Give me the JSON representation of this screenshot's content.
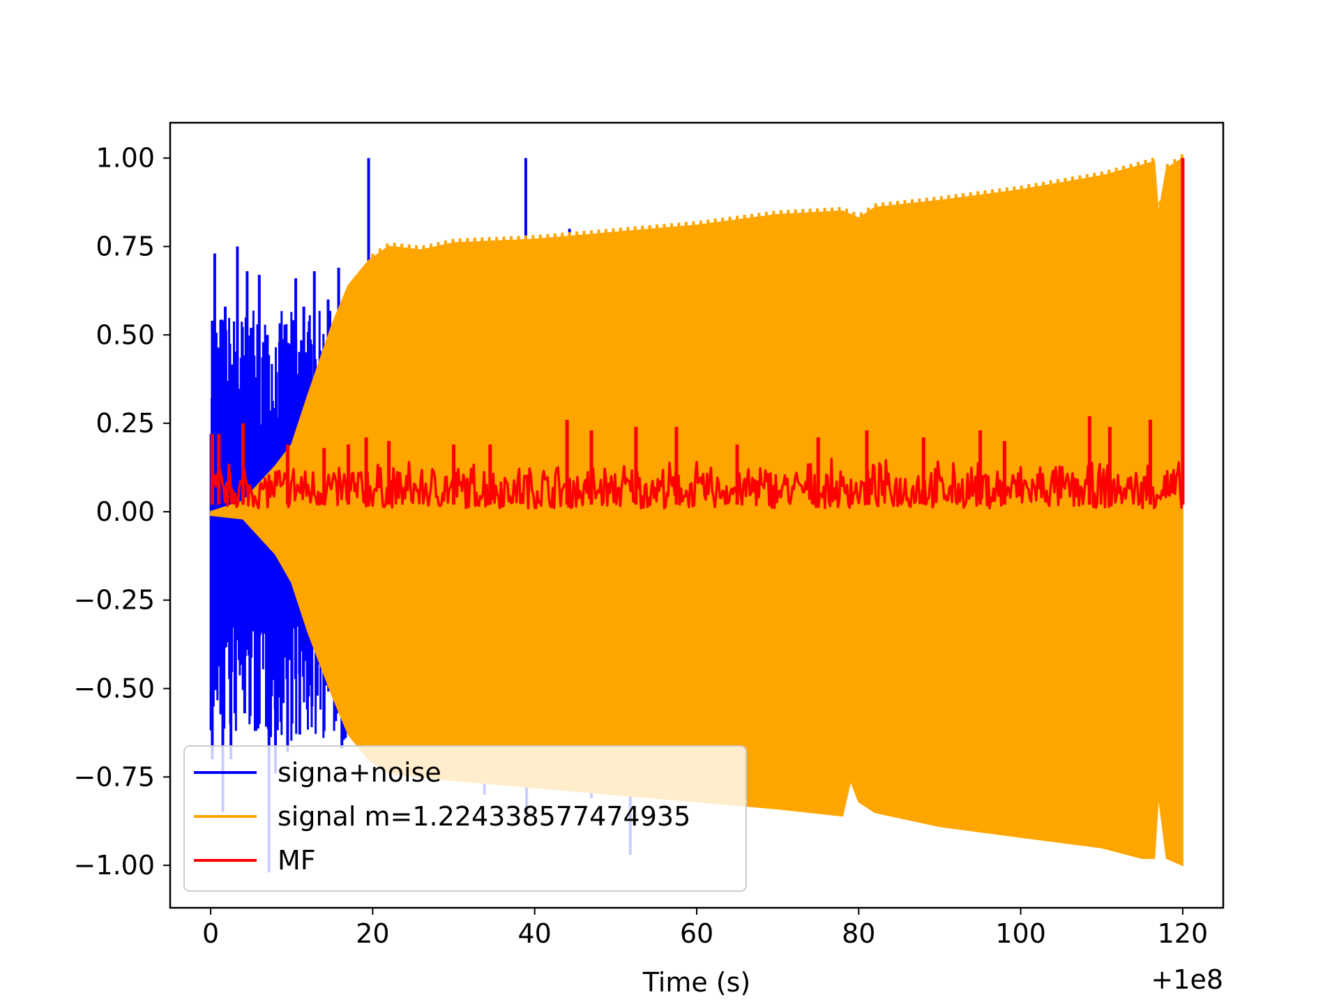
{
  "chart_data": {
    "type": "line",
    "title": "",
    "xlabel": "Time (s)",
    "ylabel": "",
    "x_offset_label": "+1e8",
    "xlim": [
      -5,
      125
    ],
    "ylim": [
      -1.12,
      1.1
    ],
    "x_ticks": [
      0,
      20,
      40,
      60,
      80,
      100,
      120
    ],
    "x_tick_labels": [
      "0",
      "20",
      "40",
      "60",
      "80",
      "100",
      "120"
    ],
    "y_ticks": [
      1.0,
      0.75,
      0.5,
      0.25,
      0.0,
      -0.25,
      -0.5,
      -0.75,
      -1.0
    ],
    "y_tick_labels": [
      "1.00",
      "0.75",
      "0.50",
      "0.25",
      "0.00",
      "−0.25",
      "−0.50",
      "−0.75",
      "−1.00"
    ],
    "grid": false,
    "legend_position": "bottom-left",
    "colors": {
      "signal_noise": "#0000ff",
      "signal": "#ffa500",
      "mf": "#ff0000"
    },
    "series": [
      {
        "name": "signa+noise",
        "color": "#0000ff",
        "spikes": [
          {
            "x": 0.2,
            "y": 0.54
          },
          {
            "x": 0.5,
            "y": 0.73
          },
          {
            "x": 1.0,
            "y": 0.4
          },
          {
            "x": 1.8,
            "y": 0.58
          },
          {
            "x": 2.3,
            "y": 0.36
          },
          {
            "x": 3.3,
            "y": 0.75
          },
          {
            "x": 4.5,
            "y": 0.68
          },
          {
            "x": 5.0,
            "y": 0.52
          },
          {
            "x": 6.0,
            "y": 0.67
          },
          {
            "x": 7.0,
            "y": 0.5
          },
          {
            "x": 8.5,
            "y": 0.48
          },
          {
            "x": 10.5,
            "y": 0.66
          },
          {
            "x": 11.5,
            "y": 0.58
          },
          {
            "x": 12.8,
            "y": 0.68
          },
          {
            "x": 14.5,
            "y": 0.6
          },
          {
            "x": 15.8,
            "y": 0.69
          },
          {
            "x": 19.5,
            "y": 1.0
          },
          {
            "x": 38.9,
            "y": 1.0
          },
          {
            "x": 44.3,
            "y": 0.8
          },
          {
            "x": 49.0,
            "y": 0.79
          },
          {
            "x": 0.2,
            "y": -0.7
          },
          {
            "x": 1.5,
            "y": -0.85
          },
          {
            "x": 2.5,
            "y": -0.7
          },
          {
            "x": 3.0,
            "y": -0.57
          },
          {
            "x": 4.2,
            "y": -0.57
          },
          {
            "x": 5.5,
            "y": -0.62
          },
          {
            "x": 6.0,
            "y": -0.6
          },
          {
            "x": 7.2,
            "y": -1.02
          },
          {
            "x": 8.0,
            "y": -0.74
          },
          {
            "x": 9.5,
            "y": -0.68
          },
          {
            "x": 11.0,
            "y": -0.63
          },
          {
            "x": 12.5,
            "y": -0.55
          },
          {
            "x": 14.0,
            "y": -0.57
          },
          {
            "x": 16.2,
            "y": -0.67
          },
          {
            "x": 33.8,
            "y": -0.8
          },
          {
            "x": 39.0,
            "y": -0.86
          },
          {
            "x": 43.0,
            "y": -0.78
          },
          {
            "x": 47.0,
            "y": -0.81
          },
          {
            "x": 51.8,
            "y": -0.97
          }
        ]
      },
      {
        "name": "signal m=1.224338577474935",
        "color": "#ffa500",
        "envelope_upper": [
          [
            0,
            0.0
          ],
          [
            4,
            0.03
          ],
          [
            8,
            0.13
          ],
          [
            10,
            0.19
          ],
          [
            12,
            0.33
          ],
          [
            15,
            0.53
          ],
          [
            17,
            0.64
          ],
          [
            19.5,
            0.71
          ],
          [
            22,
            0.75
          ],
          [
            26,
            0.74
          ],
          [
            30,
            0.76
          ],
          [
            40,
            0.77
          ],
          [
            50,
            0.79
          ],
          [
            60,
            0.81
          ],
          [
            70,
            0.84
          ],
          [
            78,
            0.85
          ],
          [
            80,
            0.83
          ],
          [
            82,
            0.86
          ],
          [
            90,
            0.88
          ],
          [
            100,
            0.91
          ],
          [
            110,
            0.95
          ],
          [
            115,
            0.98
          ],
          [
            116.5,
            0.99
          ],
          [
            117,
            0.84
          ],
          [
            118,
            0.97
          ],
          [
            120,
            1.0
          ]
        ],
        "envelope_lower": [
          [
            0,
            -0.01
          ],
          [
            4,
            -0.02
          ],
          [
            8,
            -0.12
          ],
          [
            10,
            -0.2
          ],
          [
            12,
            -0.34
          ],
          [
            15,
            -0.52
          ],
          [
            17,
            -0.63
          ],
          [
            19.5,
            -0.7
          ],
          [
            22,
            -0.74
          ],
          [
            26,
            -0.75
          ],
          [
            30,
            -0.76
          ],
          [
            40,
            -0.78
          ],
          [
            50,
            -0.8
          ],
          [
            60,
            -0.82
          ],
          [
            70,
            -0.84
          ],
          [
            78,
            -0.86
          ],
          [
            79,
            -0.76
          ],
          [
            80,
            -0.82
          ],
          [
            82,
            -0.85
          ],
          [
            90,
            -0.89
          ],
          [
            100,
            -0.92
          ],
          [
            110,
            -0.95
          ],
          [
            115,
            -0.98
          ],
          [
            116.5,
            -0.98
          ],
          [
            117,
            -0.8
          ],
          [
            118,
            -0.98
          ],
          [
            120,
            -1.0
          ]
        ]
      },
      {
        "name": "MF",
        "color": "#ff0000",
        "baseline_range": [
          0.01,
          0.15
        ],
        "peaks": [
          {
            "x": 0.2,
            "y": 0.22
          },
          {
            "x": 1.0,
            "y": 0.22
          },
          {
            "x": 4.0,
            "y": 0.25
          },
          {
            "x": 9.5,
            "y": 0.19
          },
          {
            "x": 14.0,
            "y": 0.18
          },
          {
            "x": 17.0,
            "y": 0.19
          },
          {
            "x": 19.2,
            "y": 0.21
          },
          {
            "x": 22.0,
            "y": 0.2
          },
          {
            "x": 30.0,
            "y": 0.19
          },
          {
            "x": 34.5,
            "y": 0.19
          },
          {
            "x": 44.0,
            "y": 0.26
          },
          {
            "x": 47.0,
            "y": 0.23
          },
          {
            "x": 52.5,
            "y": 0.24
          },
          {
            "x": 57.5,
            "y": 0.24
          },
          {
            "x": 65.0,
            "y": 0.19
          },
          {
            "x": 75.0,
            "y": 0.21
          },
          {
            "x": 81.0,
            "y": 0.23
          },
          {
            "x": 88.0,
            "y": 0.21
          },
          {
            "x": 95.0,
            "y": 0.23
          },
          {
            "x": 98.0,
            "y": 0.2
          },
          {
            "x": 108.5,
            "y": 0.27
          },
          {
            "x": 111.0,
            "y": 0.24
          },
          {
            "x": 116.0,
            "y": 0.26
          },
          {
            "x": 120.0,
            "y": 1.0
          }
        ]
      }
    ]
  }
}
